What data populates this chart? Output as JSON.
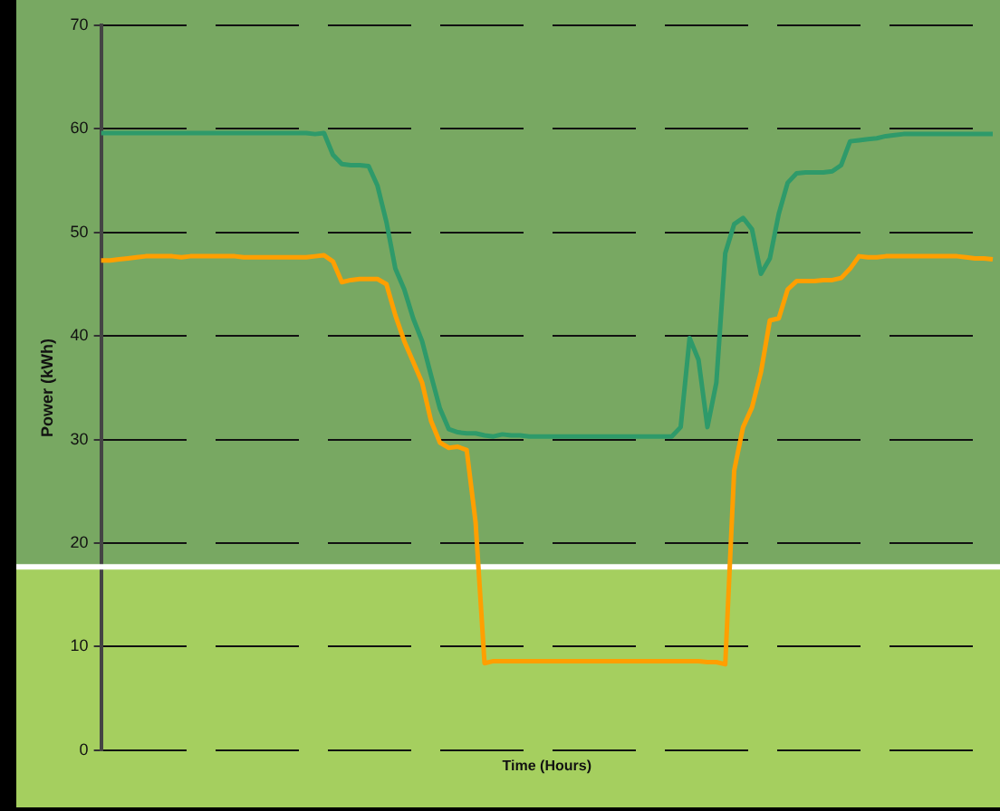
{
  "chart_data": {
    "type": "line",
    "xlabel": "Time (Hours)",
    "ylabel": "Power (kWh)",
    "categories": [
      null,
      null,
      null,
      null,
      null,
      null,
      null,
      null,
      null,
      null,
      null,
      null,
      null,
      null,
      null,
      null,
      null,
      null,
      null,
      null,
      null,
      null,
      null,
      null,
      null,
      null,
      null,
      null,
      null,
      null,
      null,
      null,
      null,
      null,
      null,
      null,
      null,
      null,
      null,
      null,
      null,
      null,
      null,
      null,
      null,
      null,
      null,
      null,
      null,
      null,
      null,
      null,
      null,
      null,
      null,
      null,
      null,
      null,
      null,
      null,
      null,
      null,
      null,
      null,
      null,
      null,
      null,
      null,
      null,
      null,
      null,
      null,
      null,
      null,
      null,
      null,
      null,
      null,
      null,
      null,
      null,
      null,
      null,
      null,
      null,
      null,
      null,
      null,
      null,
      null,
      null,
      null,
      null,
      null,
      null,
      null,
      null,
      null,
      null,
      null,
      null
    ],
    "series": [
      {
        "color": "#2e9a6a",
        "values": [
          59.6,
          59.6,
          59.6,
          59.6,
          59.6,
          59.6,
          59.6,
          59.6,
          59.6,
          59.6,
          59.6,
          59.6,
          59.6,
          59.6,
          59.6,
          59.6,
          59.6,
          59.6,
          59.6,
          59.6,
          59.6,
          59.6,
          59.6,
          59.6,
          59.5,
          59.6,
          57.5,
          56.6,
          56.5,
          56.5,
          56.4,
          54.5,
          51.0,
          46.5,
          44.5,
          41.7,
          39.5,
          36.2,
          33.0,
          31.0,
          30.7,
          30.6,
          30.6,
          30.4,
          30.3,
          30.5,
          30.4,
          30.4,
          30.3,
          30.3,
          30.3,
          30.3,
          30.3,
          30.3,
          30.3,
          30.3,
          30.3,
          30.3,
          30.3,
          30.3,
          30.3,
          30.3,
          30.3,
          30.3,
          30.3,
          31.2,
          39.8,
          37.7,
          31.2,
          35.5,
          48.0,
          50.8,
          51.4,
          50.3,
          46.0,
          47.5,
          51.8,
          54.8,
          55.7,
          55.8,
          55.8,
          55.8,
          55.9,
          56.5,
          58.8,
          58.9,
          59.0,
          59.1,
          59.3,
          59.4,
          59.5,
          59.5,
          59.5,
          59.5,
          59.5,
          59.5,
          59.5,
          59.5,
          59.5,
          59.5,
          59.5
        ]
      },
      {
        "color": "#ff9f00",
        "values": [
          47.3,
          47.3,
          47.4,
          47.5,
          47.6,
          47.7,
          47.7,
          47.7,
          47.7,
          47.6,
          47.7,
          47.7,
          47.7,
          47.7,
          47.7,
          47.7,
          47.6,
          47.6,
          47.6,
          47.6,
          47.6,
          47.6,
          47.6,
          47.6,
          47.7,
          47.8,
          47.2,
          45.2,
          45.4,
          45.5,
          45.5,
          45.5,
          45.0,
          42.0,
          39.5,
          37.5,
          35.5,
          31.8,
          29.7,
          29.2,
          29.3,
          29.0,
          22.0,
          8.4,
          8.6,
          8.6,
          8.6,
          8.6,
          8.6,
          8.6,
          8.6,
          8.6,
          8.6,
          8.6,
          8.6,
          8.6,
          8.6,
          8.6,
          8.6,
          8.6,
          8.6,
          8.6,
          8.6,
          8.6,
          8.6,
          8.6,
          8.6,
          8.6,
          8.5,
          8.5,
          8.3,
          27.0,
          31.2,
          33.1,
          36.5,
          41.5,
          41.7,
          44.5,
          45.3,
          45.3,
          45.3,
          45.4,
          45.4,
          45.6,
          46.5,
          47.7,
          47.6,
          47.6,
          47.7,
          47.7,
          47.7,
          47.7,
          47.7,
          47.7,
          47.7,
          47.7,
          47.7,
          47.6,
          47.5,
          47.5,
          47.4
        ]
      }
    ],
    "ylim": [
      0,
      70
    ],
    "yticks": [
      0,
      10,
      20,
      30,
      40,
      50,
      60,
      70
    ],
    "grid": "y",
    "tick_labels": "y",
    "bands": [
      {
        "axis": "y",
        "from": 0,
        "to": 17.7,
        "color": "#a5cf5f"
      },
      {
        "axis": "y",
        "from": 17.7,
        "to": 70,
        "color": "#78a862"
      }
    ],
    "ref_lines": [
      {
        "axis": "y",
        "value": 17.7,
        "color": "#ffffff"
      }
    ]
  }
}
